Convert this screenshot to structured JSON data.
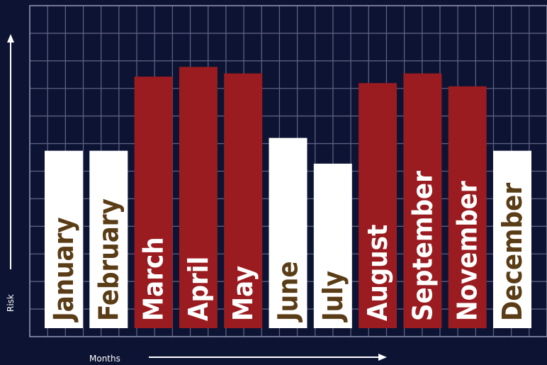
{
  "chart_data": {
    "type": "bar",
    "categories": [
      "January",
      "February",
      "March",
      "April",
      "May",
      "June",
      "July",
      "August",
      "September",
      "November",
      "December"
    ],
    "values": [
      55,
      55,
      78,
      81,
      79,
      59,
      51,
      76,
      79,
      75,
      55
    ],
    "highlight": [
      false,
      false,
      true,
      true,
      true,
      false,
      false,
      true,
      true,
      true,
      false
    ],
    "xlabel": "Months",
    "ylabel": "Risk",
    "ylim": [
      0,
      100
    ],
    "grid": true,
    "colors": {
      "background": "#0d1333",
      "grid": "#5c6082",
      "bar_high": "#9a1c20",
      "bar_low": "#ffffff",
      "label_on_high": "#ffffff",
      "label_on_low": "#5a3d16",
      "axis": "#ffffff"
    }
  }
}
